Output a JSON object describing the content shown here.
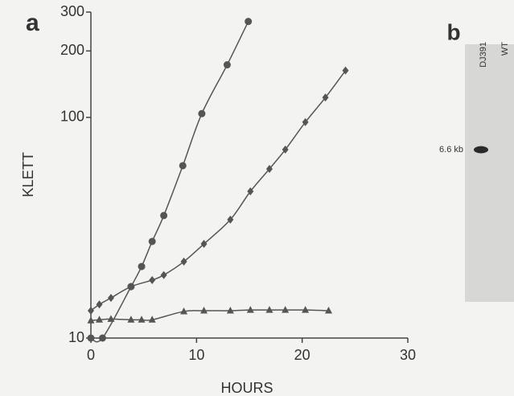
{
  "chart_data": {
    "type": "line",
    "label": "a",
    "y_label": "KLETT",
    "x_label": "HOURS",
    "log_y": true,
    "xlim": [
      0,
      30
    ],
    "xticks": [
      0,
      10,
      20,
      30
    ],
    "ylim": [
      10,
      300
    ],
    "yticks": [
      10,
      100,
      200,
      300
    ],
    "series": [
      {
        "marker": "circle",
        "color": "#555",
        "x": [
          0,
          1.1,
          3.8,
          4.8,
          5.8,
          6.9,
          8.7,
          10.5,
          12.9,
          14.9
        ],
        "values": [
          10,
          10,
          17.1,
          21.1,
          27.4,
          35.9,
          60.4,
          104,
          173,
          272
        ]
      },
      {
        "marker": "diamond",
        "color": "#555",
        "x": [
          0,
          0.8,
          1.9,
          3.8,
          5.8,
          6.9,
          8.8,
          10.7,
          13.2,
          15.1,
          16.9,
          18.4,
          20.3,
          22.2,
          24.1
        ],
        "values": [
          13.3,
          14.2,
          15.2,
          17.1,
          18.3,
          19.3,
          22.2,
          26.7,
          34.4,
          46.2,
          58.4,
          71.4,
          95.1,
          123,
          163
        ]
      },
      {
        "marker": "triangle",
        "color": "#555",
        "x": [
          0,
          0.8,
          1.9,
          3.8,
          4.8,
          5.8,
          8.8,
          10.7,
          13.2,
          15.1,
          16.9,
          18.4,
          20.3,
          22.5
        ],
        "values": [
          12.0,
          12.1,
          12.2,
          12.1,
          12.1,
          12.1,
          13.2,
          13.3,
          13.3,
          13.4,
          13.4,
          13.4,
          13.4,
          13.3
        ]
      }
    ]
  },
  "panel_b": {
    "label": "b",
    "lanes": [
      "DJ391",
      "WT"
    ],
    "band_label": "6.6 kb"
  }
}
